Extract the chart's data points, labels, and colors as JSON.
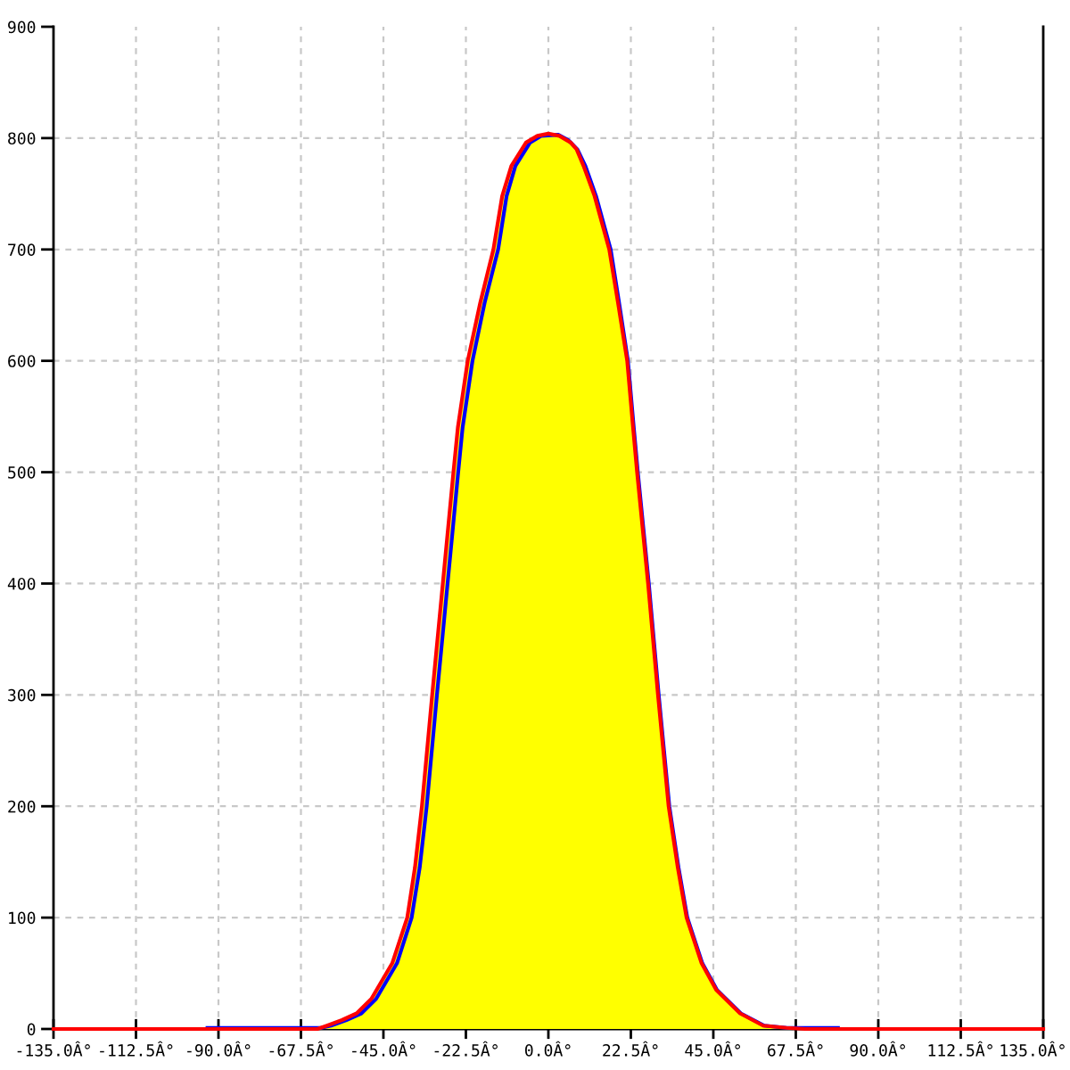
{
  "chart_data": {
    "type": "line",
    "xlim": [
      -135,
      135
    ],
    "ylim": [
      0,
      900
    ],
    "xticks": [
      {
        "value": -135,
        "label": "-135.0Â°"
      },
      {
        "value": -112.5,
        "label": "-112.5Â°"
      },
      {
        "value": -90,
        "label": "-90.0Â°"
      },
      {
        "value": -67.5,
        "label": "-67.5Â°"
      },
      {
        "value": -45,
        "label": "-45.0Â°"
      },
      {
        "value": -22.5,
        "label": "-22.5Â°"
      },
      {
        "value": 0,
        "label": "0.0Â°"
      },
      {
        "value": 22.5,
        "label": "22.5Â°"
      },
      {
        "value": 45,
        "label": "45.0Â°"
      },
      {
        "value": 67.5,
        "label": "67.5Â°"
      },
      {
        "value": 90,
        "label": "90.0Â°"
      },
      {
        "value": 112.5,
        "label": "112.5Â°"
      },
      {
        "value": 135,
        "label": "135.0Â°"
      }
    ],
    "yticks": [
      0,
      100,
      200,
      300,
      400,
      500,
      600,
      700,
      800,
      900
    ],
    "grid": true,
    "line_style": "solid",
    "series": [
      {
        "type": "area",
        "color": "#ffff00",
        "x": [
          -63,
          -60.4,
          -56.3,
          -52.3,
          -48.3,
          -42.6,
          -38.5,
          -36.4,
          -34.5,
          -31.7,
          -28.8,
          -25.9,
          -24.7,
          -22,
          -18.6,
          -15,
          -12.6,
          -10.1,
          -6.1,
          -3,
          0,
          3,
          6.1,
          7.7,
          9.6,
          12.6,
          16.6,
          19,
          21.5,
          23.1,
          24.2,
          27.2,
          29.9,
          32.8,
          35.3,
          37.7,
          41.8,
          45.8,
          52.3,
          58.6,
          65,
          70
        ],
        "values": [
          0,
          3,
          8,
          14,
          27,
          59,
          100,
          145,
          200,
          300,
          400,
          500,
          540,
          600,
          652,
          700,
          748,
          775,
          796,
          802,
          804,
          802,
          796,
          790,
          775,
          748,
          700,
          652,
          600,
          540,
          500,
          400,
          300,
          200,
          145,
          100,
          59,
          35,
          14,
          3,
          1,
          0
        ]
      },
      {
        "color": "#0000ff",
        "x": [
          -93,
          -62,
          -59.3,
          -55.1,
          -51,
          -47,
          -41.3,
          -37.3,
          -35.1,
          -33.2,
          -30.4,
          -27.5,
          -24.6,
          -23.4,
          -20.7,
          -17.4,
          -13.7,
          -11.4,
          -9,
          -5,
          -2,
          2.7,
          5.5,
          7.9,
          10.1,
          13,
          17,
          19.3,
          21.7,
          23.3,
          24.4,
          27.4,
          30.1,
          33,
          35.5,
          37.9,
          42,
          46,
          52.5,
          58.9,
          65,
          79
        ],
        "values": [
          1,
          1,
          3,
          8,
          14,
          27,
          59,
          100,
          145,
          200,
          300,
          400,
          500,
          540,
          600,
          652,
          700,
          748,
          775,
          796,
          802,
          803,
          798,
          790,
          775,
          748,
          700,
          652,
          600,
          540,
          500,
          400,
          300,
          200,
          145,
          100,
          59,
          35,
          14,
          3,
          1,
          1
        ]
      },
      {
        "color": "#ff0000",
        "x": [
          -135,
          -63,
          -60.4,
          -56.3,
          -52.3,
          -48.3,
          -42.6,
          -38.5,
          -36.4,
          -34.5,
          -31.7,
          -28.8,
          -25.9,
          -24.7,
          -22,
          -18.6,
          -15,
          -12.6,
          -10.1,
          -6.1,
          -3,
          0,
          3,
          6.1,
          7.7,
          9.6,
          12.6,
          16.6,
          19,
          21.5,
          23.1,
          24.2,
          27.2,
          29.9,
          32.8,
          35.3,
          37.7,
          41.8,
          45.8,
          52.3,
          58.6,
          65,
          70,
          135
        ],
        "values": [
          0,
          0,
          3,
          8,
          14,
          27,
          59,
          100,
          145,
          200,
          300,
          400,
          500,
          540,
          600,
          652,
          700,
          748,
          775,
          796,
          802,
          804,
          802,
          796,
          790,
          775,
          748,
          700,
          652,
          600,
          540,
          500,
          400,
          300,
          200,
          145,
          100,
          59,
          35,
          14,
          3,
          1,
          0,
          0
        ]
      }
    ]
  }
}
